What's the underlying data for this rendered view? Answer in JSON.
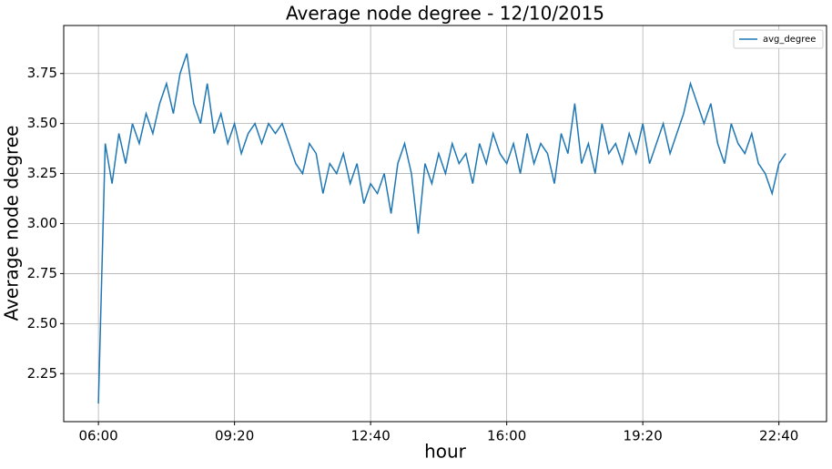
{
  "chart_data": {
    "type": "line",
    "title": "Average node degree - 12/10/2015",
    "x_label": "hour",
    "y_label": "Average node degree",
    "x": [
      360,
      370,
      380,
      390,
      400,
      410,
      420,
      430,
      440,
      450,
      460,
      470,
      480,
      490,
      500,
      510,
      520,
      530,
      540,
      550,
      560,
      570,
      580,
      590,
      600,
      610,
      620,
      630,
      640,
      650,
      660,
      670,
      680,
      690,
      700,
      710,
      720,
      730,
      740,
      750,
      760,
      770,
      780,
      790,
      800,
      810,
      820,
      830,
      840,
      850,
      860,
      870,
      880,
      890,
      900,
      910,
      920,
      930,
      940,
      950,
      960,
      970,
      980,
      990,
      1000,
      1010,
      1020,
      1030,
      1040,
      1050,
      1060,
      1070,
      1080,
      1090,
      1100,
      1110,
      1120,
      1130,
      1140,
      1150,
      1160,
      1170,
      1180,
      1190,
      1200,
      1210,
      1220,
      1230,
      1240,
      1250,
      1260,
      1270,
      1280,
      1290,
      1300,
      1310,
      1320,
      1330,
      1340,
      1350,
      1360,
      1370
    ],
    "series": [
      {
        "name": "avg_degree",
        "color": "#1f77b4",
        "values": [
          2.1,
          3.4,
          3.2,
          3.45,
          3.3,
          3.5,
          3.4,
          3.55,
          3.45,
          3.6,
          3.7,
          3.55,
          3.75,
          3.85,
          3.6,
          3.5,
          3.7,
          3.45,
          3.55,
          3.4,
          3.5,
          3.35,
          3.45,
          3.5,
          3.4,
          3.5,
          3.45,
          3.5,
          3.4,
          3.3,
          3.25,
          3.4,
          3.35,
          3.15,
          3.3,
          3.25,
          3.35,
          3.2,
          3.3,
          3.1,
          3.2,
          3.15,
          3.25,
          3.05,
          3.3,
          3.4,
          3.25,
          2.95,
          3.3,
          3.2,
          3.35,
          3.25,
          3.4,
          3.3,
          3.35,
          3.2,
          3.4,
          3.3,
          3.45,
          3.35,
          3.3,
          3.4,
          3.25,
          3.45,
          3.3,
          3.4,
          3.35,
          3.2,
          3.45,
          3.35,
          3.6,
          3.3,
          3.4,
          3.25,
          3.5,
          3.35,
          3.4,
          3.3,
          3.45,
          3.35,
          3.5,
          3.3,
          3.4,
          3.5,
          3.35,
          3.45,
          3.55,
          3.7,
          3.6,
          3.5,
          3.6,
          3.4,
          3.3,
          3.5,
          3.4,
          3.35,
          3.45,
          3.3,
          3.25,
          3.15,
          3.3,
          3.35
        ]
      }
    ],
    "xlim": [
      309,
      1430
    ],
    "ylim": [
      2.01,
      3.99
    ],
    "xticks": [
      {
        "value": 360,
        "label": "06:00"
      },
      {
        "value": 560,
        "label": "09:20"
      },
      {
        "value": 760,
        "label": "12:40"
      },
      {
        "value": 960,
        "label": "16:00"
      },
      {
        "value": 1160,
        "label": "19:20"
      },
      {
        "value": 1360,
        "label": "22:40"
      }
    ],
    "yticks": [
      2.25,
      {
        "value": 2.5,
        "label": "2.50"
      },
      2.75,
      {
        "value": 3,
        "label": "3.00"
      },
      3.25,
      {
        "value": 3.5,
        "label": "3.50"
      },
      3.75
    ],
    "grid": true,
    "legend": "upper right"
  }
}
